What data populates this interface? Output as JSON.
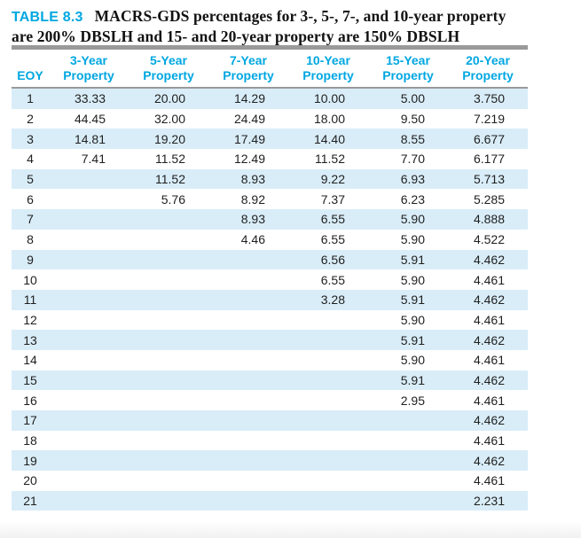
{
  "title": {
    "label": "TABLE 8.3",
    "line1": "MACRS-GDS percentages for 3-, 5-, 7-, and 10-year property",
    "line2": "are 200% DBSLH and 15- and 20-year property are 150% DBSLH"
  },
  "table": {
    "columns": [
      {
        "line1": "",
        "line2": "EOY"
      },
      {
        "line1": "3-Year",
        "line2": "Property"
      },
      {
        "line1": "5-Year",
        "line2": "Property"
      },
      {
        "line1": "7-Year",
        "line2": "Property"
      },
      {
        "line1": "10-Year",
        "line2": "Property"
      },
      {
        "line1": "15-Year",
        "line2": "Property"
      },
      {
        "line1": "20-Year",
        "line2": "Property"
      }
    ],
    "rows": [
      [
        "1",
        "33.33",
        "20.00",
        "14.29",
        "10.00",
        "5.00",
        "3.750"
      ],
      [
        "2",
        "44.45",
        "32.00",
        "24.49",
        "18.00",
        "9.50",
        "7.219"
      ],
      [
        "3",
        "14.81",
        "19.20",
        "17.49",
        "14.40",
        "8.55",
        "6.677"
      ],
      [
        "4",
        "7.41",
        "11.52",
        "12.49",
        "11.52",
        "7.70",
        "6.177"
      ],
      [
        "5",
        "",
        "11.52",
        "8.93",
        "9.22",
        "6.93",
        "5.713"
      ],
      [
        "6",
        "",
        "5.76",
        "8.92",
        "7.37",
        "6.23",
        "5.285"
      ],
      [
        "7",
        "",
        "",
        "8.93",
        "6.55",
        "5.90",
        "4.888"
      ],
      [
        "8",
        "",
        "",
        "4.46",
        "6.55",
        "5.90",
        "4.522"
      ],
      [
        "9",
        "",
        "",
        "",
        "6.56",
        "5.91",
        "4.462"
      ],
      [
        "10",
        "",
        "",
        "",
        "6.55",
        "5.90",
        "4.461"
      ],
      [
        "11",
        "",
        "",
        "",
        "3.28",
        "5.91",
        "4.462"
      ],
      [
        "12",
        "",
        "",
        "",
        "",
        "5.90",
        "4.461"
      ],
      [
        "13",
        "",
        "",
        "",
        "",
        "5.91",
        "4.462"
      ],
      [
        "14",
        "",
        "",
        "",
        "",
        "5.90",
        "4.461"
      ],
      [
        "15",
        "",
        "",
        "",
        "",
        "5.91",
        "4.462"
      ],
      [
        "16",
        "",
        "",
        "",
        "",
        "2.95",
        "4.461"
      ],
      [
        "17",
        "",
        "",
        "",
        "",
        "",
        "4.462"
      ],
      [
        "18",
        "",
        "",
        "",
        "",
        "",
        "4.461"
      ],
      [
        "19",
        "",
        "",
        "",
        "",
        "",
        "4.462"
      ],
      [
        "20",
        "",
        "",
        "",
        "",
        "",
        "4.461"
      ],
      [
        "21",
        "",
        "",
        "",
        "",
        "",
        "2.231"
      ]
    ]
  },
  "colors": {
    "accent_cyan": "#00a7e1",
    "row_stripe": "#d9edf8",
    "rule_gray": "#9a9a9a",
    "text_dark": "#1f1f1f"
  }
}
